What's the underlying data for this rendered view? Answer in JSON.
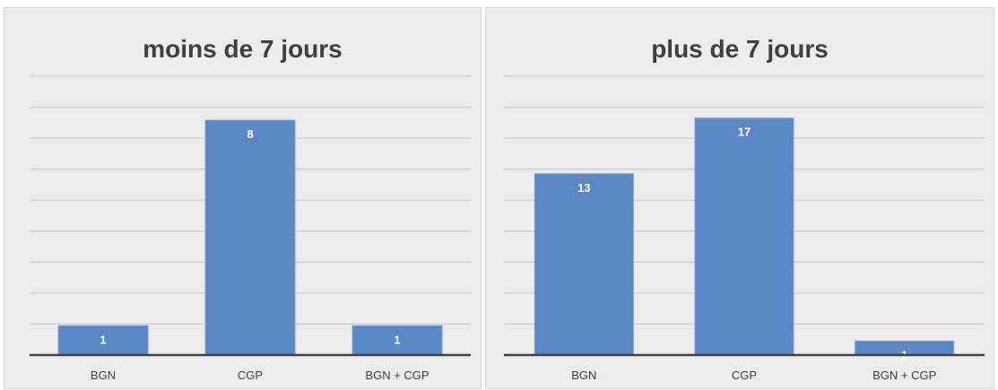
{
  "chart_data": [
    {
      "type": "bar",
      "title": "moins de 7 jours",
      "categories": [
        "BGN",
        "CGP",
        "BGN + CGP"
      ],
      "values": [
        1,
        8,
        1
      ],
      "ylim": [
        0,
        9.5
      ],
      "grid": true,
      "colors": {
        "bar": "#5b88c3",
        "grid": "#cfcfcf",
        "background": "#ececec"
      }
    },
    {
      "type": "bar",
      "title": "plus de 7 jours",
      "categories": [
        "BGN",
        "CGP",
        "BGN + CGP"
      ],
      "values": [
        13,
        17,
        1
      ],
      "ylim": [
        0,
        20
      ],
      "grid": true,
      "colors": {
        "bar": "#5b88c3",
        "grid": "#cfcfcf",
        "background": "#ececec"
      }
    }
  ]
}
